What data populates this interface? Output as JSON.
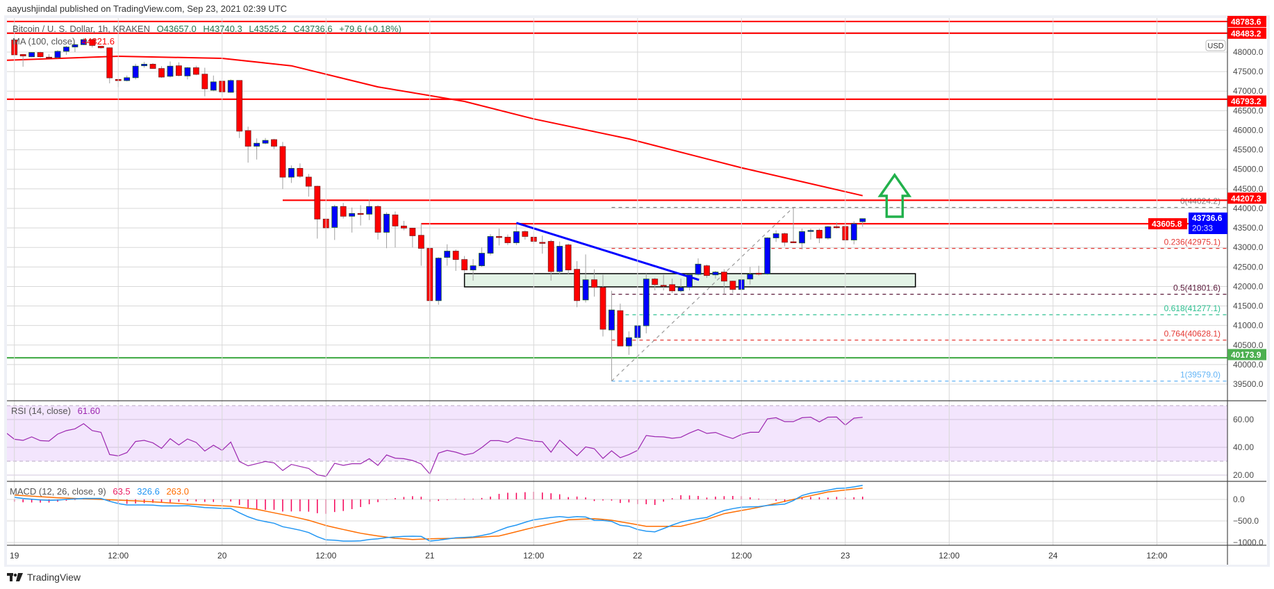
{
  "header": {
    "published": "aayushjindal published on TradingView.com, Sep 23, 2021 02:39 UTC"
  },
  "legend": {
    "symbol": "Bitcoin / U. S. Dollar, 1h, KRAKEN",
    "open": "O43657.0",
    "high": "H43740.3",
    "low": "L43525.2",
    "close": "C43736.6",
    "change": "+79.6 (+0.18%)",
    "ma_label": "MA (100, close)",
    "ma_value": "44321.6",
    "rsi_label": "RSI (14, close)",
    "rsi_value": "61.60",
    "macd_label": "MACD (12, 26, close, 9)",
    "macd_hist_value": "63.5",
    "macd_value": "326.6",
    "macd_signal_value": "263.0"
  },
  "axis": {
    "currency": "USD",
    "last_price": "43736.6",
    "countdown": "20:33"
  },
  "footer": {
    "brand": "TradingView"
  },
  "colors": {
    "up": "#0000ff",
    "up_border": "#1b5e20",
    "down": "#ff0000",
    "down_border": "#7a1b1b",
    "wick": "#a0a0a0",
    "ma": "#ff0000",
    "level": "#ff0000",
    "support": "#4caf50",
    "trendline": "#0000ff",
    "zone": "#e3f3e6",
    "arrow": "#22b14c",
    "rsi": "#9c27b0",
    "rsi_band": "#f3e5fd",
    "macd": "#2196f3",
    "signal": "#ff6d00",
    "hist": "#f50057",
    "legend_values": "#26734d"
  },
  "chart_data": {
    "type": "bar",
    "style": "candlestick",
    "title": "Bitcoin / U. S. Dollar, 1h, KRAKEN",
    "interval": "1h",
    "ohlc_fields": [
      "open",
      "high",
      "low",
      "close"
    ],
    "candles": [
      [
        48310,
        48330,
        47920,
        47930
      ],
      [
        47940,
        47950,
        47625,
        47900
      ],
      [
        47880,
        48000,
        47870,
        47990
      ],
      [
        47990,
        48010,
        47860,
        47880
      ],
      [
        47870,
        47950,
        47850,
        47860
      ],
      [
        47860,
        48050,
        47840,
        48020
      ],
      [
        48020,
        48160,
        47930,
        48130
      ],
      [
        48130,
        48220,
        48000,
        48190
      ],
      [
        48190,
        48360,
        48180,
        48320
      ],
      [
        48320,
        48340,
        48120,
        48170
      ],
      [
        48150,
        48160,
        48090,
        48110
      ],
      [
        48110,
        48120,
        47200,
        47340
      ],
      [
        47300,
        47320,
        47100,
        47270
      ],
      [
        47270,
        47400,
        47250,
        47345
      ],
      [
        47345,
        47700,
        47300,
        47640
      ],
      [
        47650,
        47750,
        47600,
        47690
      ],
      [
        47690,
        47720,
        47570,
        47580
      ],
      [
        47580,
        47640,
        47340,
        47360
      ],
      [
        47380,
        47760,
        47350,
        47640
      ],
      [
        47650,
        47740,
        47380,
        47400
      ],
      [
        47390,
        47620,
        47300,
        47600
      ],
      [
        47600,
        47650,
        47410,
        47430
      ],
      [
        47435,
        47600,
        46870,
        47060
      ],
      [
        47024,
        47400,
        47000,
        47238
      ],
      [
        47256,
        47270,
        46850,
        46982
      ],
      [
        46970,
        47300,
        46960,
        47274
      ],
      [
        47274,
        47280,
        45800,
        45976
      ],
      [
        45990,
        46090,
        45170,
        45590
      ],
      [
        45590,
        45790,
        45250,
        45667
      ],
      [
        45667,
        45800,
        45640,
        45740
      ],
      [
        45760,
        45780,
        45520,
        45590
      ],
      [
        45583,
        45700,
        44494,
        44798
      ],
      [
        44798,
        45100,
        44650,
        45024
      ],
      [
        45024,
        45150,
        44780,
        44820
      ],
      [
        44800,
        44880,
        44300,
        44566
      ],
      [
        44566,
        44580,
        43226,
        43726
      ],
      [
        43726,
        43750,
        42480,
        43500
      ],
      [
        43512,
        44090,
        43190,
        44048
      ],
      [
        44048,
        44140,
        43740,
        43798
      ],
      [
        43798,
        44020,
        43380,
        43869
      ],
      [
        43870,
        44080,
        43560,
        43860
      ],
      [
        43851,
        44230,
        43700,
        44048
      ],
      [
        44048,
        44080,
        43202,
        43387
      ],
      [
        43387,
        43900,
        42980,
        43851
      ],
      [
        43833,
        43920,
        43000,
        43548
      ],
      [
        43548,
        43680,
        43440,
        43494
      ],
      [
        43494,
        43500,
        43000,
        43298
      ],
      [
        43310,
        43620,
        42530,
        42976
      ],
      [
        42976,
        42990,
        40200,
        41637
      ],
      [
        41637,
        42750,
        41530,
        42726
      ],
      [
        42744,
        43080,
        42530,
        42905
      ],
      [
        42905,
        42950,
        42400,
        42690
      ],
      [
        42690,
        42780,
        42350,
        42423
      ],
      [
        42423,
        42700,
        42150,
        42530
      ],
      [
        42530,
        43000,
        42500,
        42851
      ],
      [
        42851,
        43340,
        42800,
        43280
      ],
      [
        43280,
        43480,
        43050,
        43270
      ],
      [
        43262,
        43330,
        43060,
        43119
      ],
      [
        43119,
        43600,
        43060,
        43405
      ],
      [
        43405,
        43440,
        43200,
        43280
      ],
      [
        43262,
        43300,
        43100,
        43155
      ],
      [
        43130,
        43300,
        42840,
        43125
      ],
      [
        43155,
        43200,
        42150,
        42381
      ],
      [
        42381,
        43150,
        42300,
        43030
      ],
      [
        43065,
        43100,
        42300,
        42423
      ],
      [
        42440,
        42650,
        41470,
        41637
      ],
      [
        41655,
        42820,
        41590,
        42173
      ],
      [
        42173,
        42440,
        41740,
        41977
      ],
      [
        41977,
        42300,
        40720,
        40905
      ],
      [
        40887,
        41890,
        39579,
        41399
      ],
      [
        41381,
        41560,
        40470,
        40476
      ],
      [
        40476,
        40850,
        40250,
        40690
      ],
      [
        40690,
        41250,
        40600,
        40994
      ],
      [
        40994,
        42330,
        40800,
        42191
      ],
      [
        42191,
        42220,
        41900,
        42048
      ],
      [
        42030,
        42300,
        41900,
        42024
      ],
      [
        42048,
        42200,
        41830,
        41887
      ],
      [
        41887,
        42200,
        41850,
        41977
      ],
      [
        41977,
        42320,
        41900,
        42298
      ],
      [
        42310,
        42720,
        42280,
        42572
      ],
      [
        42530,
        42560,
        42220,
        42280
      ],
      [
        42298,
        42400,
        42200,
        42369
      ],
      [
        42369,
        42440,
        41800,
        42137
      ],
      [
        42137,
        42150,
        41830,
        41923
      ],
      [
        41923,
        42200,
        41880,
        42173
      ],
      [
        42190,
        42500,
        42050,
        42315
      ],
      [
        42340,
        42530,
        42280,
        42333
      ],
      [
        42321,
        43260,
        42300,
        43244
      ],
      [
        43244,
        43440,
        43140,
        43351
      ],
      [
        43351,
        43380,
        43030,
        43131
      ],
      [
        43145,
        44024,
        43113,
        43143
      ],
      [
        43113,
        43480,
        42950,
        43405
      ],
      [
        43430,
        43480,
        43200,
        43435
      ],
      [
        43440,
        43480,
        43110,
        43238
      ],
      [
        43238,
        43550,
        43200,
        43530
      ],
      [
        43530,
        43640,
        43480,
        43524
      ],
      [
        43536,
        43650,
        43150,
        43190
      ],
      [
        43190,
        43670,
        43080,
        43605.8
      ],
      [
        43657,
        43740.3,
        43525.2,
        43736.6
      ]
    ],
    "ma100_points": [
      [
        -1,
        47790
      ],
      [
        12,
        47893
      ],
      [
        24,
        47840
      ],
      [
        32,
        47650
      ],
      [
        42,
        47110
      ],
      [
        52,
        46737
      ],
      [
        60,
        46290
      ],
      [
        71,
        45777
      ],
      [
        84,
        45040
      ],
      [
        98,
        44325
      ]
    ],
    "y_ticks": [
      "39500.0",
      "40000.0",
      "40500.0",
      "41000.0",
      "41500.0",
      "42000.0",
      "42500.0",
      "43000.0",
      "43500.0",
      "44000.0",
      "44500.0",
      "45000.0",
      "45500.0",
      "46000.0",
      "46500.0",
      "47000.0",
      "47500.0",
      "48000.0"
    ],
    "ylim": [
      39300,
      48850
    ],
    "x_ticks": [
      {
        "index": 0,
        "label": "19"
      },
      {
        "index": 12,
        "label": "12:00"
      },
      {
        "index": 24,
        "label": "20"
      },
      {
        "index": 36,
        "label": "12:00"
      },
      {
        "index": 48,
        "label": "21"
      },
      {
        "index": 60,
        "label": "12:00"
      },
      {
        "index": 72,
        "label": "22"
      },
      {
        "index": 84,
        "label": "12:00"
      },
      {
        "index": 96,
        "label": "23"
      },
      {
        "index": 108,
        "label": "12:00"
      },
      {
        "index": 120,
        "label": "24"
      },
      {
        "index": 132,
        "label": "12:00"
      }
    ],
    "horizontal_levels": [
      {
        "price": 48783.6,
        "label": "48783.6",
        "start_index": -1,
        "kind": "resistance"
      },
      {
        "price": 48483.2,
        "label": "48483.2",
        "start_index": -1,
        "kind": "resistance"
      },
      {
        "price": 46793.2,
        "label": "46793.2",
        "start_index": -1,
        "kind": "resistance"
      },
      {
        "price": 44207.3,
        "label": "44207.3",
        "start_index": 31,
        "kind": "resistance"
      },
      {
        "price": 43605.8,
        "label": "43605.8",
        "start_index": 47,
        "kind": "resistance"
      },
      {
        "price": 40173.9,
        "label": "40173.9",
        "start_index": -1,
        "kind": "support"
      }
    ],
    "fibonacci": {
      "start_index": 69,
      "from": [
        69,
        39579.0
      ],
      "to": [
        90,
        44024.2
      ],
      "levels": [
        {
          "label": "0(44024.2)",
          "price": 44024.2,
          "color": "#808080"
        },
        {
          "label": "0.236(42975.1)",
          "price": 42975.1,
          "color": "#e53935"
        },
        {
          "label": "0.5(41801.6)",
          "price": 41801.6,
          "color": "#5b1a3b"
        },
        {
          "label": "0.618(41277.1)",
          "price": 41277.1,
          "color": "#2bbf8f"
        },
        {
          "label": "0.764(40628.1)",
          "price": 40628.1,
          "color": "#e53935"
        },
        {
          "label": "1(39579.0)",
          "price": 39579.0,
          "color": "#64b5f6"
        }
      ]
    },
    "trendline": [
      [
        58,
        43626
      ],
      [
        79.1,
        42168
      ]
    ],
    "zone": {
      "from_index": 52,
      "to_index": 104.1,
      "top": 42328,
      "bottom": 41990
    },
    "arrow": {
      "index": 101.7,
      "tip": 44853,
      "base": 43786,
      "direction": "up"
    },
    "rsi": {
      "ticks": [
        "60.00",
        "40.00",
        "20.00"
      ],
      "tick_values": [
        60,
        40,
        20
      ],
      "band": [
        30,
        70
      ],
      "values": [
        45.8,
        45,
        47.5,
        44.8,
        44.5,
        49.5,
        52,
        53.3,
        57,
        52,
        50.8,
        34.8,
        33.8,
        36.2,
        44.2,
        45,
        43.2,
        39.2,
        46.2,
        41.7,
        46,
        43.5,
        37.3,
        41.5,
        37.8,
        43.8,
        29.8,
        26.7,
        28.2,
        29.8,
        28.8,
        23.3,
        27.7,
        26.2,
        24.8,
        20.2,
        19,
        28.5,
        27,
        28.2,
        28.2,
        31.8,
        27,
        34.5,
        32.2,
        31.8,
        30.5,
        28,
        20.8,
        35.8,
        37.8,
        36.5,
        34.5,
        35.7,
        39.8,
        44.8,
        44.8,
        43.5,
        47,
        45.7,
        44.5,
        44,
        36.5,
        45.2,
        39.5,
        34,
        40.3,
        39,
        32,
        37.5,
        32.5,
        34.8,
        37.8,
        48.5,
        47.7,
        47.5,
        46.5,
        47.2,
        50.3,
        52.8,
        50,
        50.7,
        48.3,
        46.3,
        49.2,
        50.8,
        50.8,
        60.5,
        61.3,
        58.5,
        58.5,
        61.3,
        61.7,
        58.3,
        61.7,
        61.8,
        56,
        61,
        61.6
      ]
    },
    "macd": {
      "ticks": [
        "0.0",
        "−500.0",
        "−1000.0"
      ],
      "tick_values": [
        0,
        -500,
        -1000
      ],
      "macd": [
        48,
        22,
        5,
        -11,
        -22,
        -16,
        0,
        11,
        22,
        22,
        22,
        -43,
        -97,
        -129,
        -129,
        -129,
        -134,
        -151,
        -151,
        -151,
        -145,
        -167,
        -188,
        -199,
        -210,
        -210,
        -312,
        -403,
        -473,
        -516,
        -554,
        -634,
        -672,
        -715,
        -769,
        -866,
        -941,
        -946,
        -968,
        -968,
        -962,
        -930,
        -914,
        -887,
        -871,
        -860,
        -855,
        -860,
        -968,
        -946,
        -919,
        -892,
        -882,
        -871,
        -839,
        -796,
        -720,
        -645,
        -597,
        -532,
        -473,
        -446,
        -419,
        -398,
        -419,
        -398,
        -409,
        -484,
        -489,
        -511,
        -602,
        -624,
        -699,
        -737,
        -753,
        -677,
        -597,
        -527,
        -484,
        -446,
        -419,
        -333,
        -258,
        -215,
        -183,
        -172,
        -167,
        -140,
        -124,
        -108,
        -27,
        91,
        145,
        177,
        215,
        253,
        263,
        290,
        326.6
      ],
      "signal_points": [
        [
          0,
          102
        ],
        [
          5,
          38
        ],
        [
          10,
          0
        ],
        [
          15,
          -43
        ],
        [
          20,
          -108
        ],
        [
          25,
          -161
        ],
        [
          28,
          -231
        ],
        [
          30,
          -312
        ],
        [
          32,
          -392
        ],
        [
          34,
          -484
        ],
        [
          36,
          -607
        ],
        [
          38,
          -699
        ],
        [
          40,
          -785
        ],
        [
          42,
          -849
        ],
        [
          44,
          -903
        ],
        [
          46,
          -930
        ],
        [
          48,
          -914
        ],
        [
          52,
          -898
        ],
        [
          56,
          -849
        ],
        [
          60,
          -650
        ],
        [
          64,
          -473
        ],
        [
          67,
          -446
        ],
        [
          69,
          -484
        ],
        [
          73,
          -624
        ],
        [
          77,
          -624
        ],
        [
          79,
          -527
        ],
        [
          82,
          -333
        ],
        [
          86,
          -183
        ],
        [
          90,
          0
        ],
        [
          94,
          172
        ],
        [
          98,
          263
        ]
      ]
    }
  }
}
